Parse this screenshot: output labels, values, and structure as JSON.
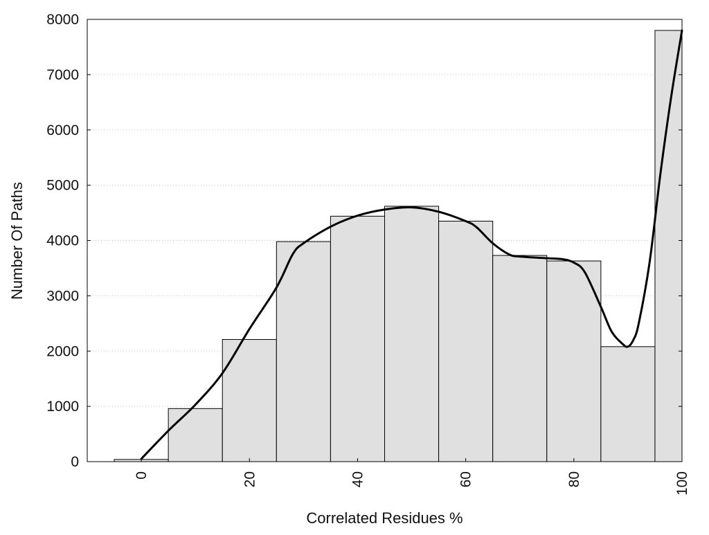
{
  "chart_data": {
    "type": "bar",
    "title": "",
    "xlabel": "Correlated Residues %",
    "ylabel": "Number Of Paths",
    "xlim": [
      -10,
      100
    ],
    "ylim": [
      0,
      8000
    ],
    "xticks": [
      0,
      20,
      40,
      60,
      80,
      100
    ],
    "xtick_labels": [
      "0",
      "20",
      "40",
      "60",
      "80",
      "100"
    ],
    "yticks": [
      0,
      1000,
      2000,
      3000,
      4000,
      5000,
      6000,
      7000,
      8000
    ],
    "ytick_labels": [
      "0",
      "1000",
      "2000",
      "3000",
      "4000",
      "5000",
      "6000",
      "7000",
      "8000"
    ],
    "grid": "horizontal dotted",
    "bins": [
      {
        "start": -5,
        "end": 5,
        "value": 40
      },
      {
        "start": 5,
        "end": 15,
        "value": 960
      },
      {
        "start": 15,
        "end": 25,
        "value": 2210
      },
      {
        "start": 25,
        "end": 35,
        "value": 3980
      },
      {
        "start": 35,
        "end": 45,
        "value": 4440
      },
      {
        "start": 45,
        "end": 55,
        "value": 4620
      },
      {
        "start": 55,
        "end": 65,
        "value": 4350
      },
      {
        "start": 65,
        "end": 75,
        "value": 3730
      },
      {
        "start": 75,
        "end": 85,
        "value": 3630
      },
      {
        "start": 85,
        "end": 95,
        "value": 2080
      },
      {
        "start": 95,
        "end": 105,
        "value": 7800
      }
    ],
    "curve": {
      "x": [
        0,
        5,
        10,
        15,
        20,
        25,
        28,
        30,
        35,
        40,
        45,
        50,
        55,
        60,
        62,
        65,
        68,
        70,
        75,
        78,
        80,
        82,
        85,
        87,
        89,
        90,
        91,
        92,
        94,
        96,
        98,
        100
      ],
      "y": [
        50,
        560,
        1030,
        1600,
        2400,
        3150,
        3750,
        3950,
        4250,
        4450,
        4560,
        4600,
        4520,
        4350,
        4240,
        3950,
        3750,
        3710,
        3680,
        3660,
        3600,
        3430,
        2800,
        2350,
        2130,
        2080,
        2200,
        2500,
        3600,
        5200,
        6600,
        7800
      ]
    },
    "bar_fill": "#e0e0e0",
    "bar_stroke": "#000000",
    "curve_color": "#000000",
    "grid_color": "#c8c8c8"
  }
}
